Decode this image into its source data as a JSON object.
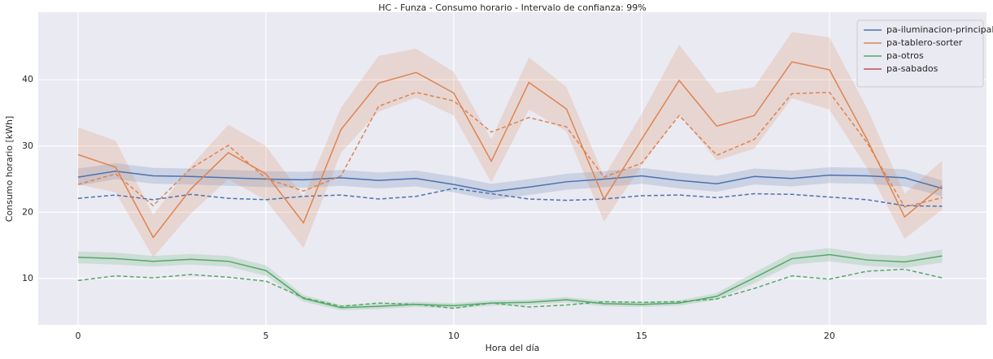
{
  "chart_data": {
    "type": "line",
    "title": "HC - Funza - Consumo horario - Intervalo de confianza: 99%",
    "x_label": "Hora del día",
    "y_label": "Consumo horario [kWh]",
    "x": [
      0,
      1,
      2,
      3,
      4,
      5,
      6,
      7,
      8,
      9,
      10,
      11,
      12,
      13,
      14,
      15,
      16,
      17,
      18,
      19,
      20,
      21,
      22,
      23
    ],
    "xlim": [
      -1.06,
      24.18
    ],
    "ylim": [
      3.0,
      50.2
    ],
    "xticks": [
      0,
      5,
      10,
      15,
      20
    ],
    "yticks": [
      10,
      20,
      30,
      40
    ],
    "grid": true,
    "legend": "upper right",
    "series": [
      {
        "name": "pa-iluminacion-principal",
        "color": "#4c72b0",
        "values": [
          25.3,
          26.2,
          25.5,
          25.4,
          25.2,
          25.0,
          24.9,
          25.2,
          24.8,
          25.1,
          24.2,
          23.1,
          23.8,
          24.6,
          25.0,
          25.5,
          24.8,
          24.3,
          25.4,
          25.1,
          25.6,
          25.5,
          25.2,
          23.6
        ],
        "ci_lower": [
          24.0,
          25.0,
          24.3,
          24.2,
          24.0,
          23.8,
          23.7,
          24.0,
          23.6,
          23.9,
          23.0,
          21.9,
          22.6,
          23.4,
          23.8,
          24.3,
          23.6,
          23.1,
          24.2,
          23.9,
          24.4,
          24.3,
          23.9,
          22.4
        ],
        "ci_upper": [
          26.6,
          27.4,
          26.7,
          26.6,
          26.4,
          26.2,
          26.1,
          26.4,
          26.0,
          26.3,
          25.4,
          24.3,
          25.0,
          25.8,
          26.2,
          26.7,
          26.0,
          25.5,
          26.6,
          26.3,
          26.8,
          26.7,
          26.5,
          24.8
        ],
        "dashed_values": [
          22.1,
          22.6,
          21.9,
          22.7,
          22.1,
          21.9,
          22.4,
          22.6,
          22.0,
          22.4,
          23.6,
          22.8,
          22.0,
          21.8,
          22.0,
          22.5,
          22.6,
          22.2,
          22.8,
          22.7,
          22.3,
          21.9,
          21.0,
          20.9
        ]
      },
      {
        "name": "pa-tablero-sorter",
        "color": "#dd8452",
        "values": [
          28.7,
          26.8,
          16.2,
          23.5,
          29.0,
          25.8,
          18.4,
          32.5,
          39.5,
          41.1,
          38.0,
          27.7,
          39.6,
          35.6,
          22.0,
          31.0,
          39.9,
          33.0,
          34.6,
          42.7,
          41.5,
          31.0,
          19.3,
          24.0
        ],
        "ci_lower": [
          24.2,
          23.0,
          13.2,
          19.8,
          25.0,
          21.8,
          14.6,
          29.0,
          35.2,
          37.3,
          34.6,
          24.5,
          35.5,
          32.2,
          18.6,
          27.0,
          34.8,
          27.8,
          29.6,
          37.2,
          35.5,
          26.7,
          16.0,
          20.4
        ],
        "ci_upper": [
          32.8,
          30.8,
          19.6,
          27.0,
          33.2,
          30.0,
          22.3,
          35.8,
          43.6,
          44.7,
          41.2,
          31.0,
          43.4,
          38.9,
          25.4,
          34.8,
          45.3,
          38.0,
          38.9,
          47.2,
          46.4,
          35.7,
          22.8,
          27.8
        ],
        "dashed_values": [
          24.2,
          25.8,
          21.0,
          26.6,
          30.1,
          25.1,
          23.2,
          25.5,
          36.0,
          38.1,
          36.8,
          32.1,
          34.3,
          32.9,
          25.3,
          27.4,
          34.6,
          28.6,
          31.0,
          37.9,
          38.1,
          30.5,
          20.8,
          22.2
        ]
      },
      {
        "name": "pa-otros",
        "color": "#55a868",
        "values": [
          13.2,
          13.0,
          12.6,
          12.9,
          12.6,
          11.2,
          7.0,
          5.6,
          5.8,
          6.1,
          5.9,
          6.3,
          6.4,
          6.8,
          6.2,
          6.1,
          6.3,
          7.3,
          10.1,
          13.0,
          13.6,
          12.8,
          12.5,
          13.4
        ],
        "ci_lower": [
          12.3,
          12.1,
          11.8,
          12.1,
          11.8,
          10.4,
          6.5,
          5.2,
          5.4,
          5.7,
          5.5,
          5.9,
          6.0,
          6.4,
          5.8,
          5.7,
          5.9,
          6.8,
          9.3,
          12.1,
          12.6,
          11.9,
          11.6,
          12.4
        ],
        "ci_upper": [
          14.1,
          13.9,
          13.4,
          13.7,
          13.4,
          12.0,
          7.5,
          6.0,
          6.2,
          6.5,
          6.3,
          6.7,
          6.8,
          7.2,
          6.6,
          6.5,
          6.7,
          7.8,
          10.9,
          13.9,
          14.6,
          13.7,
          13.4,
          14.4
        ],
        "dashed_values": [
          9.7,
          10.4,
          10.1,
          10.6,
          10.2,
          9.6,
          7.1,
          5.8,
          6.3,
          6.1,
          5.5,
          6.3,
          5.7,
          6.0,
          6.5,
          6.4,
          6.5,
          6.9,
          8.5,
          10.4,
          9.9,
          11.1,
          11.4,
          10.1
        ]
      },
      {
        "name": "pa-sabados",
        "color": "#c44e52",
        "values": [
          null,
          null,
          null,
          null,
          null,
          null,
          null,
          null,
          null,
          null,
          null,
          null,
          null,
          null,
          null,
          null,
          null,
          null,
          null,
          null,
          null,
          null,
          null,
          null
        ]
      }
    ]
  }
}
